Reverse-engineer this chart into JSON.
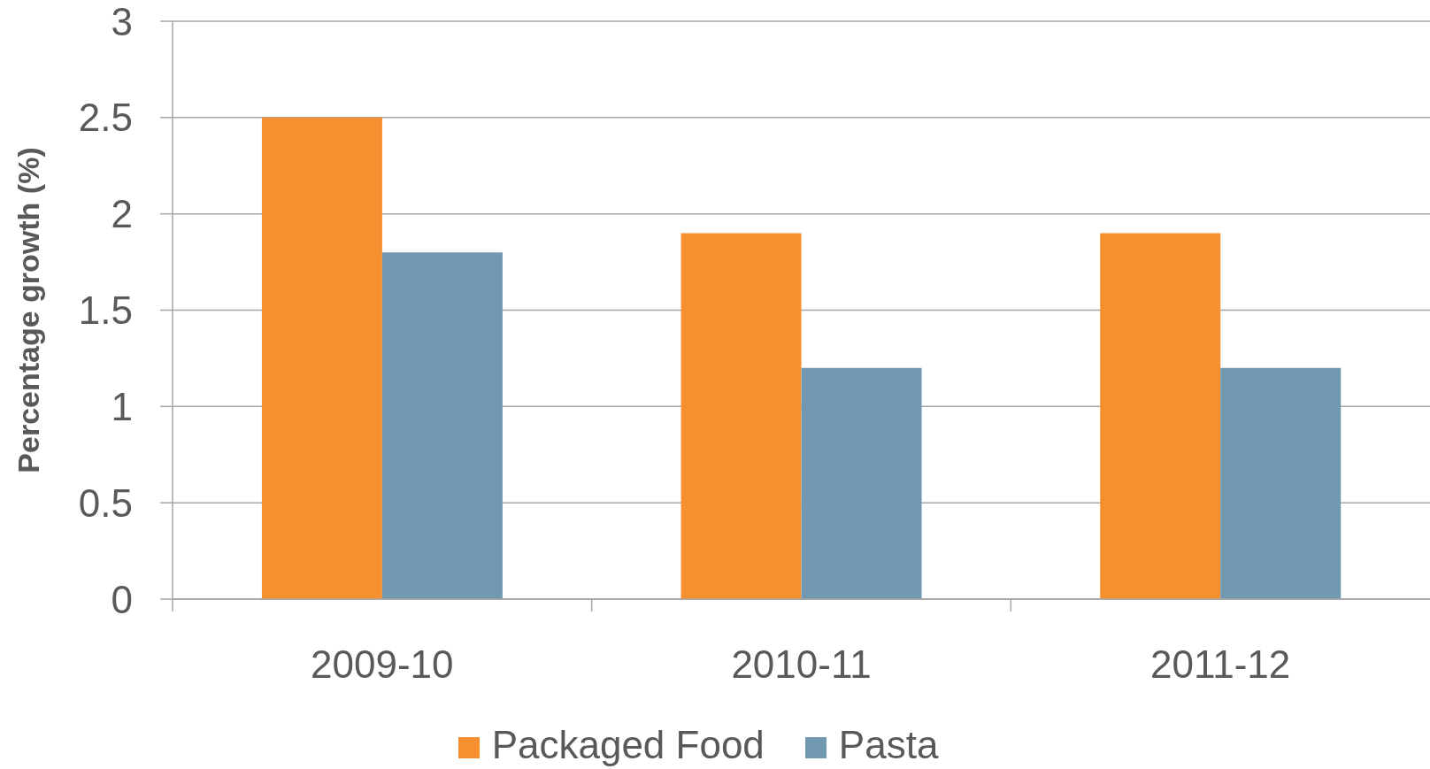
{
  "chart_data": {
    "type": "bar",
    "ylabel": "Percentage growth (%)",
    "categories": [
      "2009-10",
      "2010-11",
      "2011-12"
    ],
    "series": [
      {
        "name": "Packaged Food",
        "color": "#f6902e",
        "values": [
          2.5,
          1.9,
          1.9
        ]
      },
      {
        "name": "Pasta",
        "color": "#7098b1",
        "values": [
          1.8,
          1.2,
          1.2
        ]
      }
    ],
    "ylim": [
      0,
      3
    ],
    "yticks": [
      0,
      0.5,
      1,
      1.5,
      2,
      2.5,
      3
    ],
    "grid": "y",
    "legend": "bottom"
  }
}
